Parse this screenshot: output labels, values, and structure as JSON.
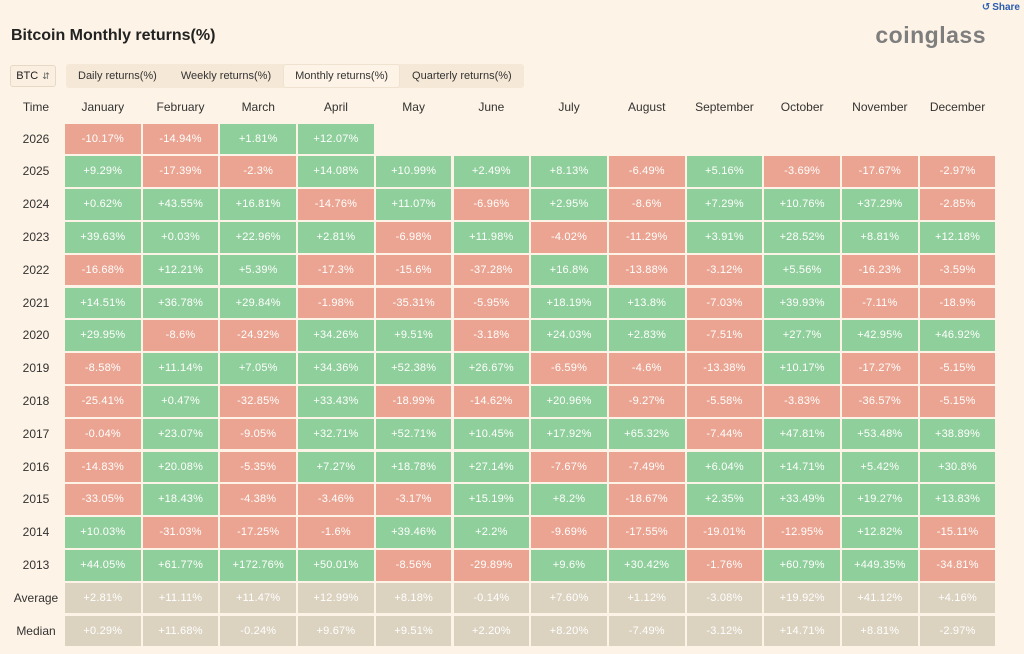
{
  "share_label": "Share",
  "title": "Bitcoin Monthly returns(%)",
  "logo_text": "coinglass",
  "selector": {
    "value": "BTC"
  },
  "tabs": [
    {
      "label": "Daily returns(%)",
      "active": false
    },
    {
      "label": "Weekly returns(%)",
      "active": false
    },
    {
      "label": "Monthly returns(%)",
      "active": true
    },
    {
      "label": "Quarterly returns(%)",
      "active": false
    }
  ],
  "colors": {
    "positive": "#8fcf9b",
    "negative": "#eba491",
    "stat": "#dbd2c0"
  },
  "chart_data": {
    "type": "table",
    "corner_label": "Time",
    "columns": [
      "January",
      "February",
      "March",
      "April",
      "May",
      "June",
      "July",
      "August",
      "September",
      "October",
      "November",
      "December"
    ],
    "rows": [
      {
        "label": "2026",
        "values": [
          "-10.17%",
          "-14.94%",
          "+1.81%",
          "+12.07%",
          "",
          "",
          "",
          "",
          "",
          "",
          "",
          ""
        ]
      },
      {
        "label": "2025",
        "values": [
          "+9.29%",
          "-17.39%",
          "-2.3%",
          "+14.08%",
          "+10.99%",
          "+2.49%",
          "+8.13%",
          "-6.49%",
          "+5.16%",
          "-3.69%",
          "-17.67%",
          "-2.97%"
        ]
      },
      {
        "label": "2024",
        "values": [
          "+0.62%",
          "+43.55%",
          "+16.81%",
          "-14.76%",
          "+11.07%",
          "-6.96%",
          "+2.95%",
          "-8.6%",
          "+7.29%",
          "+10.76%",
          "+37.29%",
          "-2.85%"
        ]
      },
      {
        "label": "2023",
        "values": [
          "+39.63%",
          "+0.03%",
          "+22.96%",
          "+2.81%",
          "-6.98%",
          "+11.98%",
          "-4.02%",
          "-11.29%",
          "+3.91%",
          "+28.52%",
          "+8.81%",
          "+12.18%"
        ]
      },
      {
        "label": "2022",
        "values": [
          "-16.68%",
          "+12.21%",
          "+5.39%",
          "-17.3%",
          "-15.6%",
          "-37.28%",
          "+16.8%",
          "-13.88%",
          "-3.12%",
          "+5.56%",
          "-16.23%",
          "-3.59%"
        ]
      },
      {
        "label": "2021",
        "values": [
          "+14.51%",
          "+36.78%",
          "+29.84%",
          "-1.98%",
          "-35.31%",
          "-5.95%",
          "+18.19%",
          "+13.8%",
          "-7.03%",
          "+39.93%",
          "-7.11%",
          "-18.9%"
        ]
      },
      {
        "label": "2020",
        "values": [
          "+29.95%",
          "-8.6%",
          "-24.92%",
          "+34.26%",
          "+9.51%",
          "-3.18%",
          "+24.03%",
          "+2.83%",
          "-7.51%",
          "+27.7%",
          "+42.95%",
          "+46.92%"
        ]
      },
      {
        "label": "2019",
        "values": [
          "-8.58%",
          "+11.14%",
          "+7.05%",
          "+34.36%",
          "+52.38%",
          "+26.67%",
          "-6.59%",
          "-4.6%",
          "-13.38%",
          "+10.17%",
          "-17.27%",
          "-5.15%"
        ]
      },
      {
        "label": "2018",
        "values": [
          "-25.41%",
          "+0.47%",
          "-32.85%",
          "+33.43%",
          "-18.99%",
          "-14.62%",
          "+20.96%",
          "-9.27%",
          "-5.58%",
          "-3.83%",
          "-36.57%",
          "-5.15%"
        ]
      },
      {
        "label": "2017",
        "values": [
          "-0.04%",
          "+23.07%",
          "-9.05%",
          "+32.71%",
          "+52.71%",
          "+10.45%",
          "+17.92%",
          "+65.32%",
          "-7.44%",
          "+47.81%",
          "+53.48%",
          "+38.89%"
        ]
      },
      {
        "label": "2016",
        "values": [
          "-14.83%",
          "+20.08%",
          "-5.35%",
          "+7.27%",
          "+18.78%",
          "+27.14%",
          "-7.67%",
          "-7.49%",
          "+6.04%",
          "+14.71%",
          "+5.42%",
          "+30.8%"
        ]
      },
      {
        "label": "2015",
        "values": [
          "-33.05%",
          "+18.43%",
          "-4.38%",
          "-3.46%",
          "-3.17%",
          "+15.19%",
          "+8.2%",
          "-18.67%",
          "+2.35%",
          "+33.49%",
          "+19.27%",
          "+13.83%"
        ]
      },
      {
        "label": "2014",
        "values": [
          "+10.03%",
          "-31.03%",
          "-17.25%",
          "-1.6%",
          "+39.46%",
          "+2.2%",
          "-9.69%",
          "-17.55%",
          "-19.01%",
          "-12.95%",
          "+12.82%",
          "-15.11%"
        ]
      },
      {
        "label": "2013",
        "values": [
          "+44.05%",
          "+61.77%",
          "+172.76%",
          "+50.01%",
          "-8.56%",
          "-29.89%",
          "+9.6%",
          "+30.42%",
          "-1.76%",
          "+60.79%",
          "+449.35%",
          "-34.81%"
        ]
      }
    ],
    "summary_rows": [
      {
        "label": "Average",
        "values": [
          "+2.81%",
          "+11.11%",
          "+11.47%",
          "+12.99%",
          "+8.18%",
          "-0.14%",
          "+7.60%",
          "+1.12%",
          "-3.08%",
          "+19.92%",
          "+41.12%",
          "+4.16%"
        ]
      },
      {
        "label": "Median",
        "values": [
          "+0.29%",
          "+11.68%",
          "-0.24%",
          "+9.67%",
          "+9.51%",
          "+2.20%",
          "+8.20%",
          "-7.49%",
          "-3.12%",
          "+14.71%",
          "+8.81%",
          "-2.97%"
        ]
      }
    ]
  }
}
